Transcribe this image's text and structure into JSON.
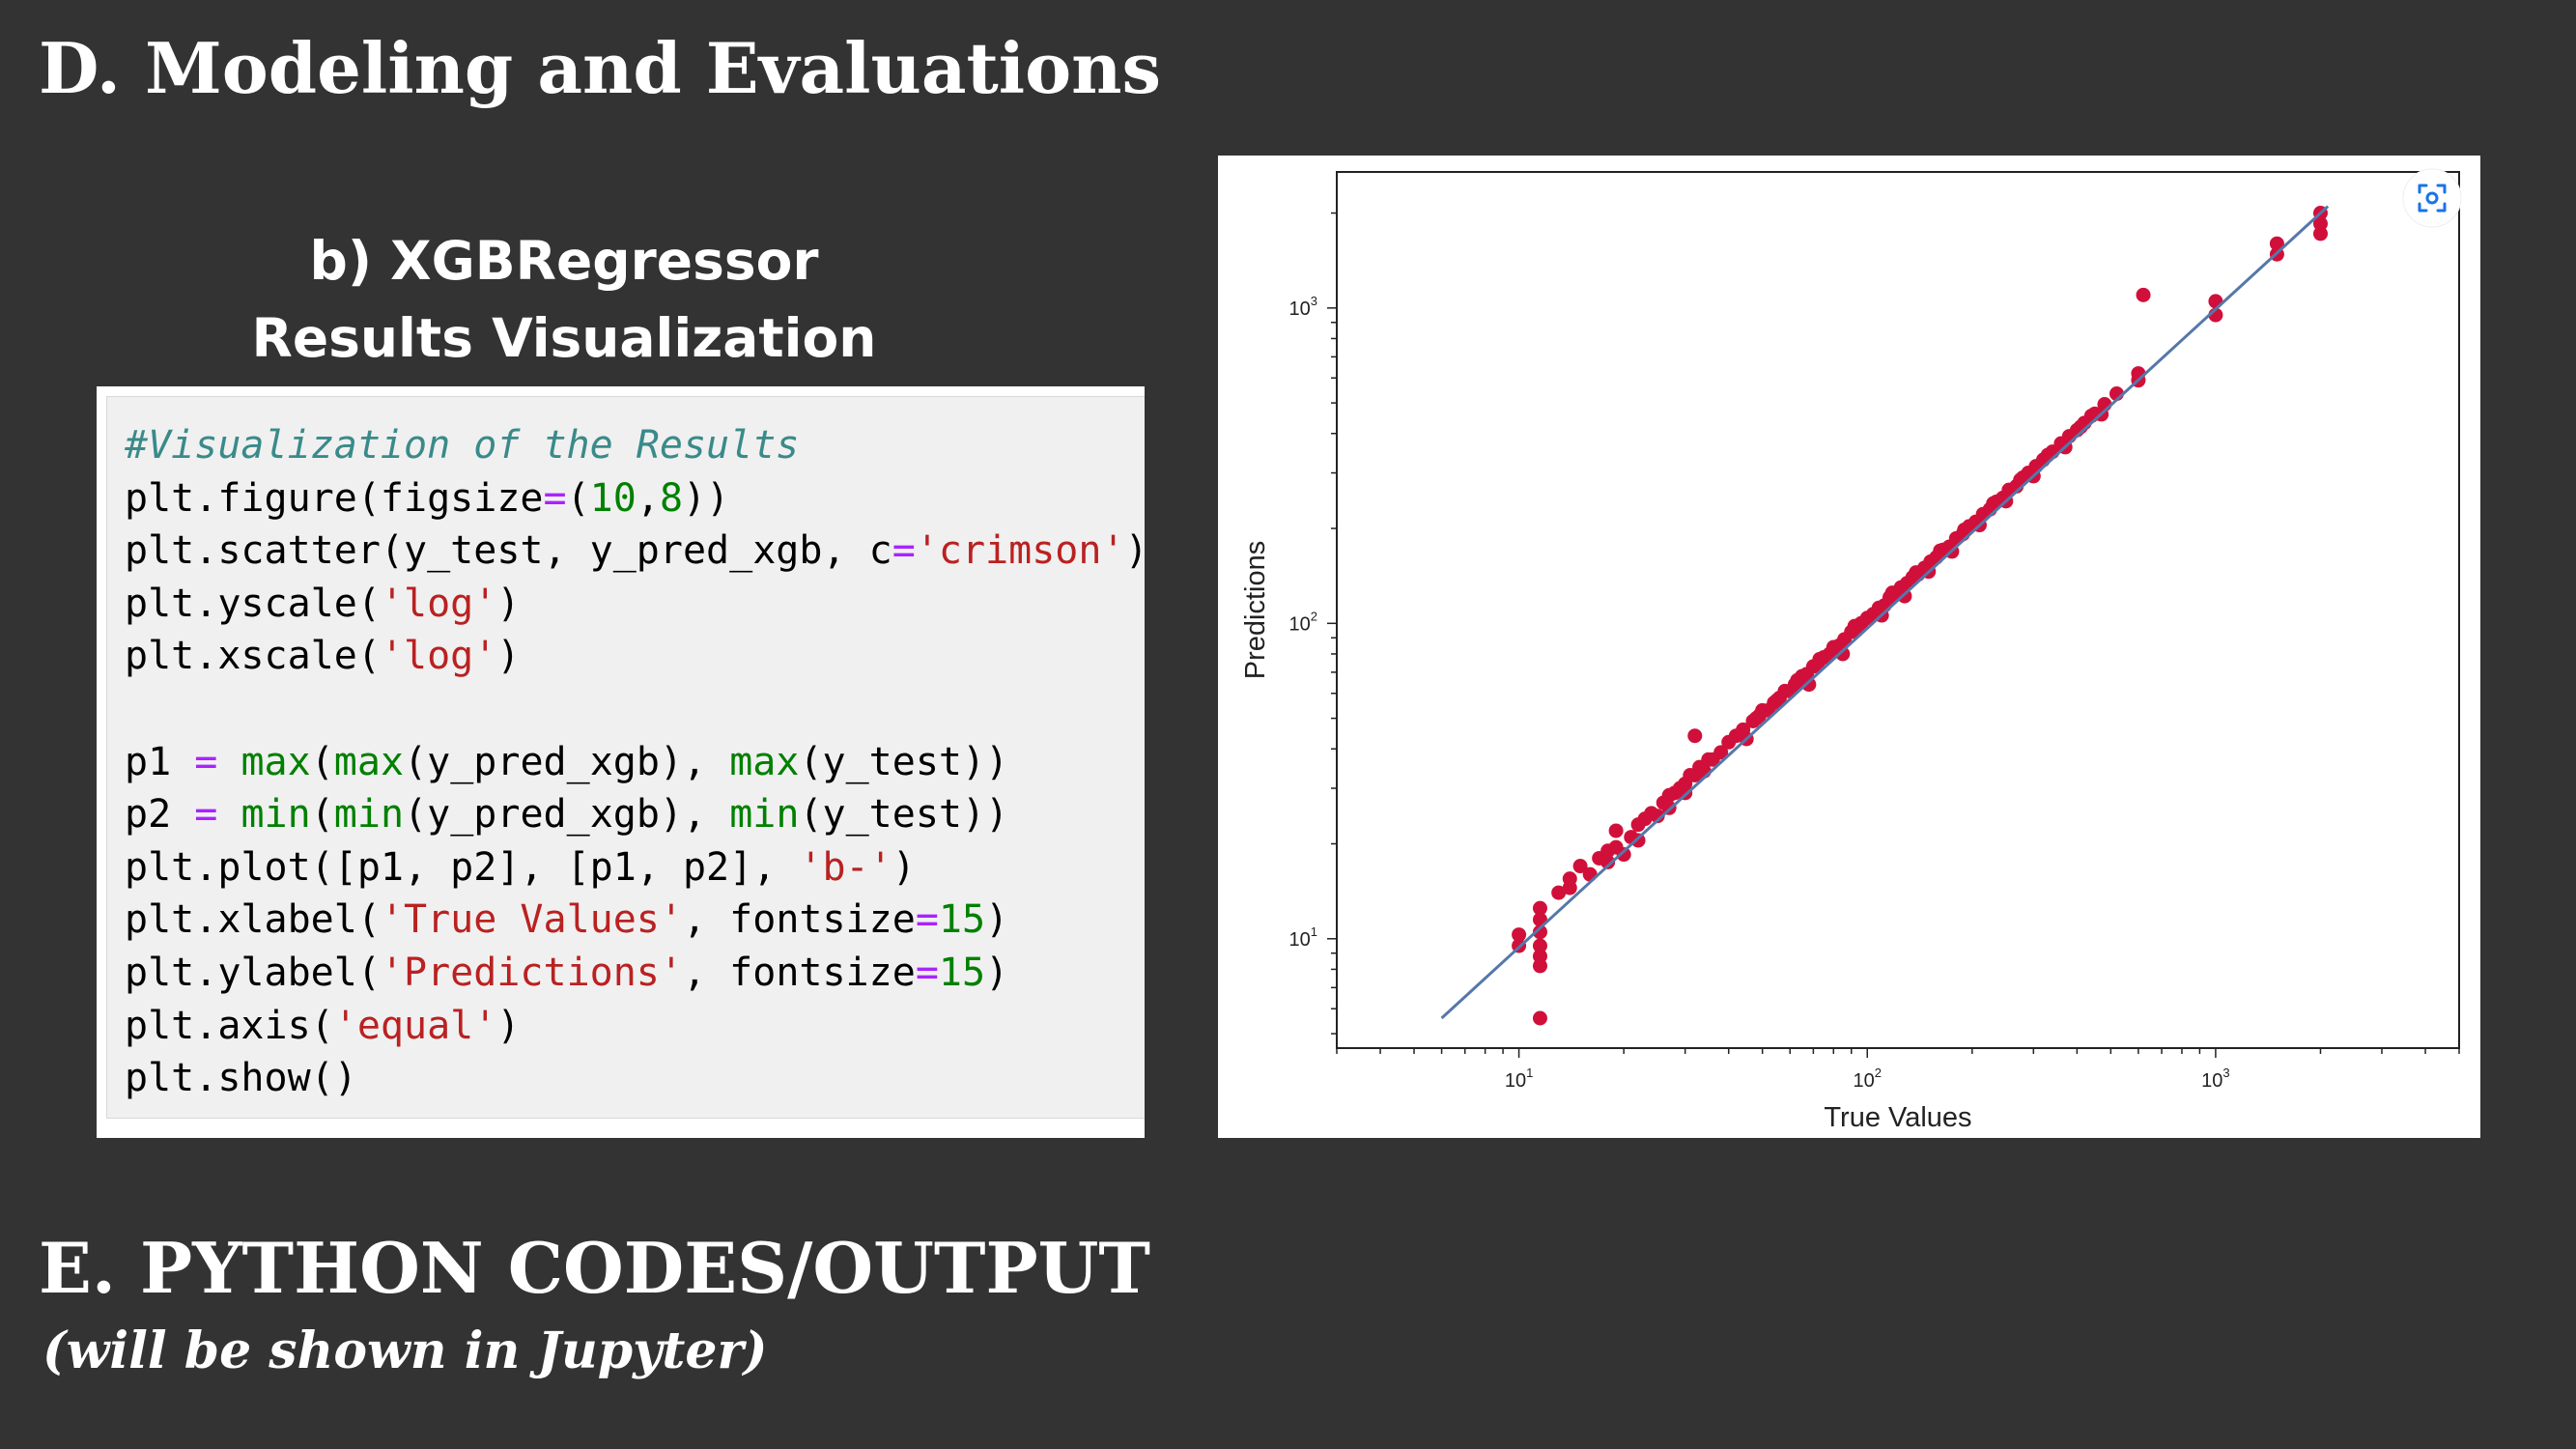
{
  "slide": {
    "section_d_title": "D. Modeling and Evaluations",
    "subheading_line1": "b) XGBRegressor",
    "subheading_line2": "Results Visualization",
    "section_e_title": "E. PYTHON CODES/OUTPUT",
    "section_e_subtitle": "(will be shown in Jupyter)"
  },
  "code_cell": {
    "lines": [
      [
        {
          "t": "#Visualization of the Results",
          "k": "comment"
        }
      ],
      [
        {
          "t": "plt.figure(figsize"
        },
        {
          "t": "=",
          "k": "op"
        },
        {
          "t": "("
        },
        {
          "t": "10",
          "k": "num"
        },
        {
          "t": ","
        },
        {
          "t": "8",
          "k": "num"
        },
        {
          "t": "))"
        }
      ],
      [
        {
          "t": "plt.scatter(y_test, y_pred_xgb, c"
        },
        {
          "t": "=",
          "k": "op"
        },
        {
          "t": "'crimson'",
          "k": "str"
        },
        {
          "t": ")"
        }
      ],
      [
        {
          "t": "plt.yscale("
        },
        {
          "t": "'log'",
          "k": "str"
        },
        {
          "t": ")"
        }
      ],
      [
        {
          "t": "plt.xscale("
        },
        {
          "t": "'log'",
          "k": "str"
        },
        {
          "t": ")"
        }
      ],
      [],
      [
        {
          "t": "p1 "
        },
        {
          "t": "=",
          "k": "op"
        },
        {
          "t": " "
        },
        {
          "t": "max",
          "k": "fn"
        },
        {
          "t": "("
        },
        {
          "t": "max",
          "k": "fn"
        },
        {
          "t": "(y_pred_xgb), "
        },
        {
          "t": "max",
          "k": "fn"
        },
        {
          "t": "(y_test))"
        }
      ],
      [
        {
          "t": "p2 "
        },
        {
          "t": "=",
          "k": "op"
        },
        {
          "t": " "
        },
        {
          "t": "min",
          "k": "fn"
        },
        {
          "t": "("
        },
        {
          "t": "min",
          "k": "fn"
        },
        {
          "t": "(y_pred_xgb), "
        },
        {
          "t": "min",
          "k": "fn"
        },
        {
          "t": "(y_test))"
        }
      ],
      [
        {
          "t": "plt.plot([p1, p2], [p1, p2], "
        },
        {
          "t": "'b-'",
          "k": "str"
        },
        {
          "t": ")"
        }
      ],
      [
        {
          "t": "plt.xlabel("
        },
        {
          "t": "'True Values'",
          "k": "str"
        },
        {
          "t": ", fontsize"
        },
        {
          "t": "=",
          "k": "op"
        },
        {
          "t": "15",
          "k": "num"
        },
        {
          "t": ")"
        }
      ],
      [
        {
          "t": "plt.ylabel("
        },
        {
          "t": "'Predictions'",
          "k": "str"
        },
        {
          "t": ", fontsize"
        },
        {
          "t": "=",
          "k": "op"
        },
        {
          "t": "15",
          "k": "num"
        },
        {
          "t": ")"
        }
      ],
      [
        {
          "t": "plt.axis("
        },
        {
          "t": "'equal'",
          "k": "str"
        },
        {
          "t": ")"
        }
      ],
      [
        {
          "t": "plt.show()"
        }
      ]
    ]
  },
  "chart_data": {
    "type": "scatter",
    "xlabel": "True Values",
    "ylabel": "Predictions",
    "xscale": "log",
    "yscale": "log",
    "xlim": [
      3,
      5000
    ],
    "ylim": [
      4.5,
      2700
    ],
    "xticks": [
      {
        "value": 10,
        "base": "10",
        "exp": "1"
      },
      {
        "value": 100,
        "base": "10",
        "exp": "2"
      },
      {
        "value": 1000,
        "base": "10",
        "exp": "3"
      }
    ],
    "yticks": [
      {
        "value": 10,
        "base": "10",
        "exp": "1"
      },
      {
        "value": 100,
        "base": "10",
        "exp": "2"
      },
      {
        "value": 1000,
        "base": "10",
        "exp": "3"
      }
    ],
    "point_color": "#d0103a",
    "line_color": "#5577aa",
    "grid": false,
    "reference_line": [
      [
        6,
        5.6
      ],
      [
        2100,
        2100
      ]
    ],
    "points": [
      [
        10,
        9.5
      ],
      [
        10,
        10.3
      ],
      [
        11.5,
        12.5
      ],
      [
        11.5,
        11.5
      ],
      [
        11.5,
        10.5
      ],
      [
        11.5,
        9.5
      ],
      [
        11.5,
        8.8
      ],
      [
        11.5,
        8.2
      ],
      [
        11.5,
        5.6
      ],
      [
        13,
        14
      ],
      [
        14,
        14.5
      ],
      [
        14,
        15.5
      ],
      [
        15,
        17
      ],
      [
        16,
        16
      ],
      [
        17,
        18
      ],
      [
        18,
        19
      ],
      [
        18,
        17.5
      ],
      [
        19,
        19.5
      ],
      [
        19,
        22
      ],
      [
        20,
        18.5
      ],
      [
        21,
        21
      ],
      [
        22,
        23
      ],
      [
        22,
        20.5
      ],
      [
        23,
        24
      ],
      [
        24,
        25
      ],
      [
        25,
        24.5
      ],
      [
        26,
        27
      ],
      [
        27,
        28.5
      ],
      [
        27,
        26
      ],
      [
        28,
        29
      ],
      [
        29,
        30
      ],
      [
        30,
        31
      ],
      [
        30,
        29
      ],
      [
        31,
        33
      ],
      [
        32,
        33
      ],
      [
        33,
        35
      ],
      [
        34,
        34
      ],
      [
        35,
        37
      ],
      [
        36,
        37
      ],
      [
        38,
        39
      ],
      [
        32,
        44
      ],
      [
        40,
        42
      ],
      [
        42,
        44
      ],
      [
        44,
        46
      ],
      [
        45,
        43
      ],
      [
        47,
        49
      ],
      [
        49,
        51
      ],
      [
        50,
        53
      ],
      [
        52,
        53
      ],
      [
        54,
        56
      ],
      [
        56,
        58
      ],
      [
        58,
        61
      ],
      [
        60,
        61
      ],
      [
        62,
        64
      ],
      [
        65,
        68
      ],
      [
        67,
        69
      ],
      [
        70,
        73
      ],
      [
        72,
        74
      ],
      [
        75,
        78
      ],
      [
        78,
        80
      ],
      [
        80,
        84
      ],
      [
        83,
        85
      ],
      [
        86,
        89
      ],
      [
        90,
        94
      ],
      [
        93,
        95
      ],
      [
        96,
        100
      ],
      [
        100,
        104
      ],
      [
        104,
        107
      ],
      [
        108,
        112
      ],
      [
        112,
        114
      ],
      [
        116,
        121
      ],
      [
        120,
        123
      ],
      [
        125,
        130
      ],
      [
        130,
        134
      ],
      [
        135,
        140
      ],
      [
        140,
        143
      ],
      [
        146,
        150
      ],
      [
        152,
        157
      ],
      [
        158,
        162
      ],
      [
        165,
        171
      ],
      [
        172,
        175
      ],
      [
        180,
        186
      ],
      [
        188,
        192
      ],
      [
        196,
        203
      ],
      [
        205,
        210
      ],
      [
        215,
        222
      ],
      [
        225,
        230
      ],
      [
        235,
        243
      ],
      [
        245,
        250
      ],
      [
        255,
        265
      ],
      [
        268,
        272
      ],
      [
        280,
        290
      ],
      [
        290,
        300
      ],
      [
        305,
        315
      ],
      [
        320,
        330
      ],
      [
        340,
        350
      ],
      [
        360,
        372
      ],
      [
        380,
        392
      ],
      [
        400,
        410
      ],
      [
        420,
        432
      ],
      [
        450,
        462
      ],
      [
        480,
        495
      ],
      [
        520,
        535
      ],
      [
        600,
        590
      ],
      [
        600,
        620
      ],
      [
        620,
        1100
      ],
      [
        1000,
        1050
      ],
      [
        1000,
        950
      ],
      [
        1500,
        1600
      ],
      [
        1500,
        1480
      ],
      [
        2000,
        2000
      ],
      [
        2000,
        1850
      ],
      [
        2000,
        1720
      ],
      [
        48,
        50
      ],
      [
        55,
        57
      ],
      [
        63,
        66
      ],
      [
        68,
        64
      ],
      [
        73,
        77
      ],
      [
        85,
        80
      ],
      [
        92,
        98
      ],
      [
        110,
        106
      ],
      [
        118,
        125
      ],
      [
        128,
        122
      ],
      [
        138,
        145
      ],
      [
        150,
        146
      ],
      [
        162,
        170
      ],
      [
        175,
        169
      ],
      [
        190,
        198
      ],
      [
        210,
        205
      ],
      [
        230,
        240
      ],
      [
        250,
        244
      ],
      [
        275,
        285
      ],
      [
        300,
        293
      ],
      [
        330,
        342
      ],
      [
        370,
        362
      ],
      [
        410,
        420
      ],
      [
        440,
        455
      ],
      [
        470,
        460
      ]
    ]
  }
}
